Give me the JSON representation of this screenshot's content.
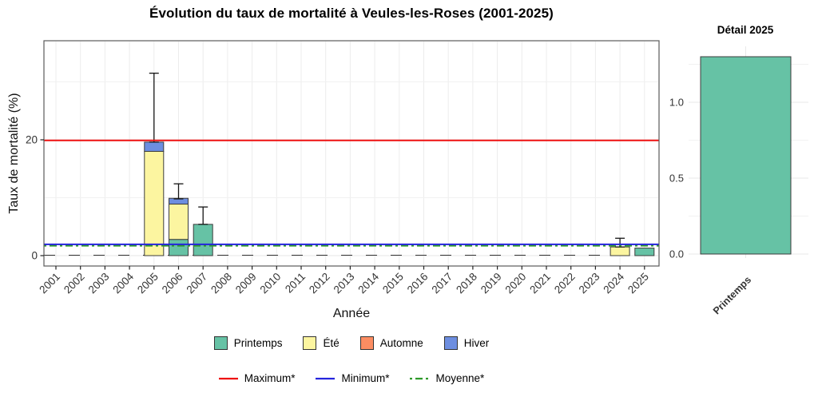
{
  "chart_data": [
    {
      "type": "bar",
      "stacked": true,
      "title": "Évolution du taux de mortalité à Veules-les-Roses (2001-2025)",
      "xlabel": "Année",
      "ylabel": "Taux de mortalité (%)",
      "categories": [
        "2001",
        "2002",
        "2003",
        "2004",
        "2005",
        "2006",
        "2007",
        "2008",
        "2009",
        "2010",
        "2011",
        "2012",
        "2013",
        "2014",
        "2015",
        "2016",
        "2017",
        "2018",
        "2019",
        "2020",
        "2021",
        "2022",
        "2023",
        "2024",
        "2025"
      ],
      "series": [
        {
          "name": "Printemps",
          "color": "#66C2A5",
          "values": [
            0,
            0,
            0,
            0,
            0,
            2.8,
            5.4,
            0,
            0,
            0,
            0,
            0,
            0,
            0,
            0,
            0,
            0,
            0,
            0,
            0,
            0,
            0,
            0,
            0,
            1.3
          ]
        },
        {
          "name": "Été",
          "color": "#FCF5A0",
          "values": [
            0,
            0,
            0,
            0,
            18.0,
            6.1,
            0,
            0,
            0,
            0,
            0,
            0,
            0,
            0,
            0,
            0,
            0,
            0,
            0,
            0,
            0,
            0,
            0,
            1.5,
            0
          ]
        },
        {
          "name": "Automne",
          "color": "#FC8D62",
          "values": [
            0,
            0,
            0,
            0,
            0,
            0,
            0,
            0,
            0,
            0,
            0,
            0,
            0,
            0,
            0,
            0,
            0,
            0,
            0,
            0,
            0,
            0,
            0,
            0,
            0
          ]
        },
        {
          "name": "Hiver",
          "color": "#6D8EE0",
          "values": [
            0,
            0,
            0,
            0,
            1.6,
            1.0,
            0,
            0,
            0,
            0,
            0,
            0,
            0,
            0,
            0,
            0,
            0,
            0,
            0,
            0,
            0,
            0,
            0,
            0,
            0
          ]
        }
      ],
      "error_bars": [
        {
          "category": "2005",
          "low": 19.6,
          "high": 31.5
        },
        {
          "category": "2006",
          "low": 9.8,
          "high": 12.4
        },
        {
          "category": "2007",
          "low": 5.4,
          "high": 8.4
        },
        {
          "category": "2024",
          "low": 1.5,
          "high": 3.0
        }
      ],
      "ref_lines": [
        {
          "label": "Moyenne*",
          "value": 1.7,
          "color": "#2E9929",
          "linetype": "twodash"
        },
        {
          "label": "Minimum*",
          "value": 1.95,
          "color": "#2525DD",
          "linetype": "solid"
        },
        {
          "label": "Maximum*",
          "value": 19.9,
          "color": "#EE1111",
          "linetype": "solid"
        }
      ],
      "zero_line": {
        "value": 0,
        "color": "#333333",
        "linetype": "longdash"
      },
      "yticks": [
        0,
        20
      ],
      "grid_minor_y": [
        10,
        30
      ],
      "ylim": [
        -1.8,
        37
      ],
      "grid": true,
      "legend_position": "bottom"
    },
    {
      "type": "bar",
      "title": "Détail 2025",
      "categories": [
        "Printemps"
      ],
      "values": [
        1.3
      ],
      "color": "#66C2A5",
      "yticks": [
        0.0,
        0.5,
        1.0
      ],
      "grid_minor_y": [
        0.25,
        0.75,
        1.25
      ],
      "ylim": [
        0,
        1.38
      ],
      "xlabel": "",
      "ylabel": ""
    }
  ],
  "legend_order": {
    "seasons": [
      "Printemps",
      "Été",
      "Automne",
      "Hiver"
    ],
    "lines": [
      "Maximum*",
      "Minimum*",
      "Moyenne*"
    ]
  }
}
